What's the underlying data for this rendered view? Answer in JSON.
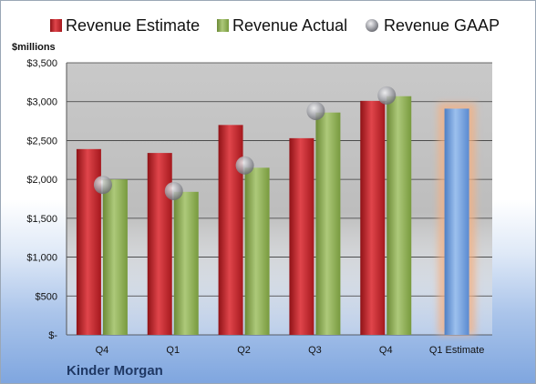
{
  "company": "Kinder Morgan",
  "colors": {
    "estimate": "#c0272d",
    "actual": "#8cac52",
    "gaap": "#a9aab0",
    "q1_estimate": "#6f9bd6",
    "glow": "#f4b183"
  },
  "chart_data": {
    "type": "bar",
    "unit_label": "$millions",
    "categories": [
      "Q4",
      "Q1",
      "Q2",
      "Q3",
      "Q4",
      "Q1 Estimate"
    ],
    "ylim": [
      0,
      3500
    ],
    "y_ticks": [
      0,
      500,
      1000,
      1500,
      2000,
      2500,
      3000,
      3500
    ],
    "y_tick_labels": [
      "$-",
      "$500",
      "$1,000",
      "$1,500",
      "$2,000",
      "$2,500",
      "$3,000",
      "$3,500"
    ],
    "grid": true,
    "legend_position": "top",
    "series": [
      {
        "name": "Revenue Estimate",
        "kind": "bar",
        "values": [
          2390,
          2340,
          2700,
          2530,
          3010,
          null
        ]
      },
      {
        "name": "Revenue Actual",
        "kind": "bar",
        "values": [
          2000,
          1840,
          2150,
          2860,
          3070,
          null
        ]
      },
      {
        "name": "Revenue GAAP",
        "kind": "marker",
        "values": [
          1930,
          1850,
          2180,
          2880,
          3080,
          null
        ]
      },
      {
        "name": "",
        "kind": "bar-highlight",
        "values": [
          null,
          null,
          null,
          null,
          null,
          2910
        ]
      }
    ]
  }
}
